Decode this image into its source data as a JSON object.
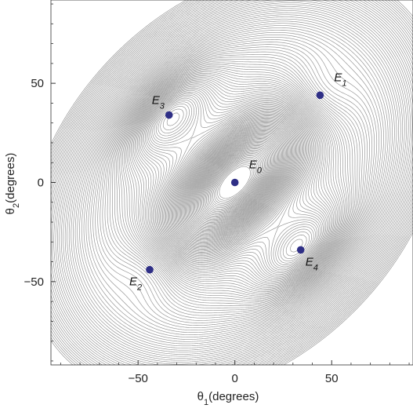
{
  "chart_data": {
    "type": "scatter",
    "title": "",
    "xlabel": {
      "base": "θ",
      "subscript": "1",
      "suffix": "(degrees)"
    },
    "ylabel": {
      "base": "θ",
      "subscript": "2",
      "suffix": "(degrees)"
    },
    "xlim": [
      -95,
      92
    ],
    "ylim": [
      -92,
      92
    ],
    "x_ticks": [
      -50,
      0,
      50
    ],
    "y_ticks": [
      -50,
      0,
      50
    ],
    "x_tick_labels": [
      "−50",
      "0",
      "50"
    ],
    "y_tick_labels": [
      "−50",
      "0",
      "50"
    ],
    "grid": false,
    "background": "contour-lines",
    "points": [
      {
        "label_base": "E",
        "label_sub": "0",
        "x": 0,
        "y": 0,
        "label_position": "upper-right"
      },
      {
        "label_base": "E",
        "label_sub": "1",
        "x": 44,
        "y": 44,
        "label_position": "upper-right"
      },
      {
        "label_base": "E",
        "label_sub": "2",
        "x": -44,
        "y": -44,
        "label_position": "lower-left"
      },
      {
        "label_base": "E",
        "label_sub": "3",
        "x": -34,
        "y": 34,
        "label_position": "upper-left"
      },
      {
        "label_base": "E",
        "label_sub": "4",
        "x": 34,
        "y": -34,
        "label_position": "lower-right"
      }
    ],
    "colors": {
      "contour": "#8a8a8a",
      "point": "#2f2f86",
      "axis": "#333333"
    }
  }
}
